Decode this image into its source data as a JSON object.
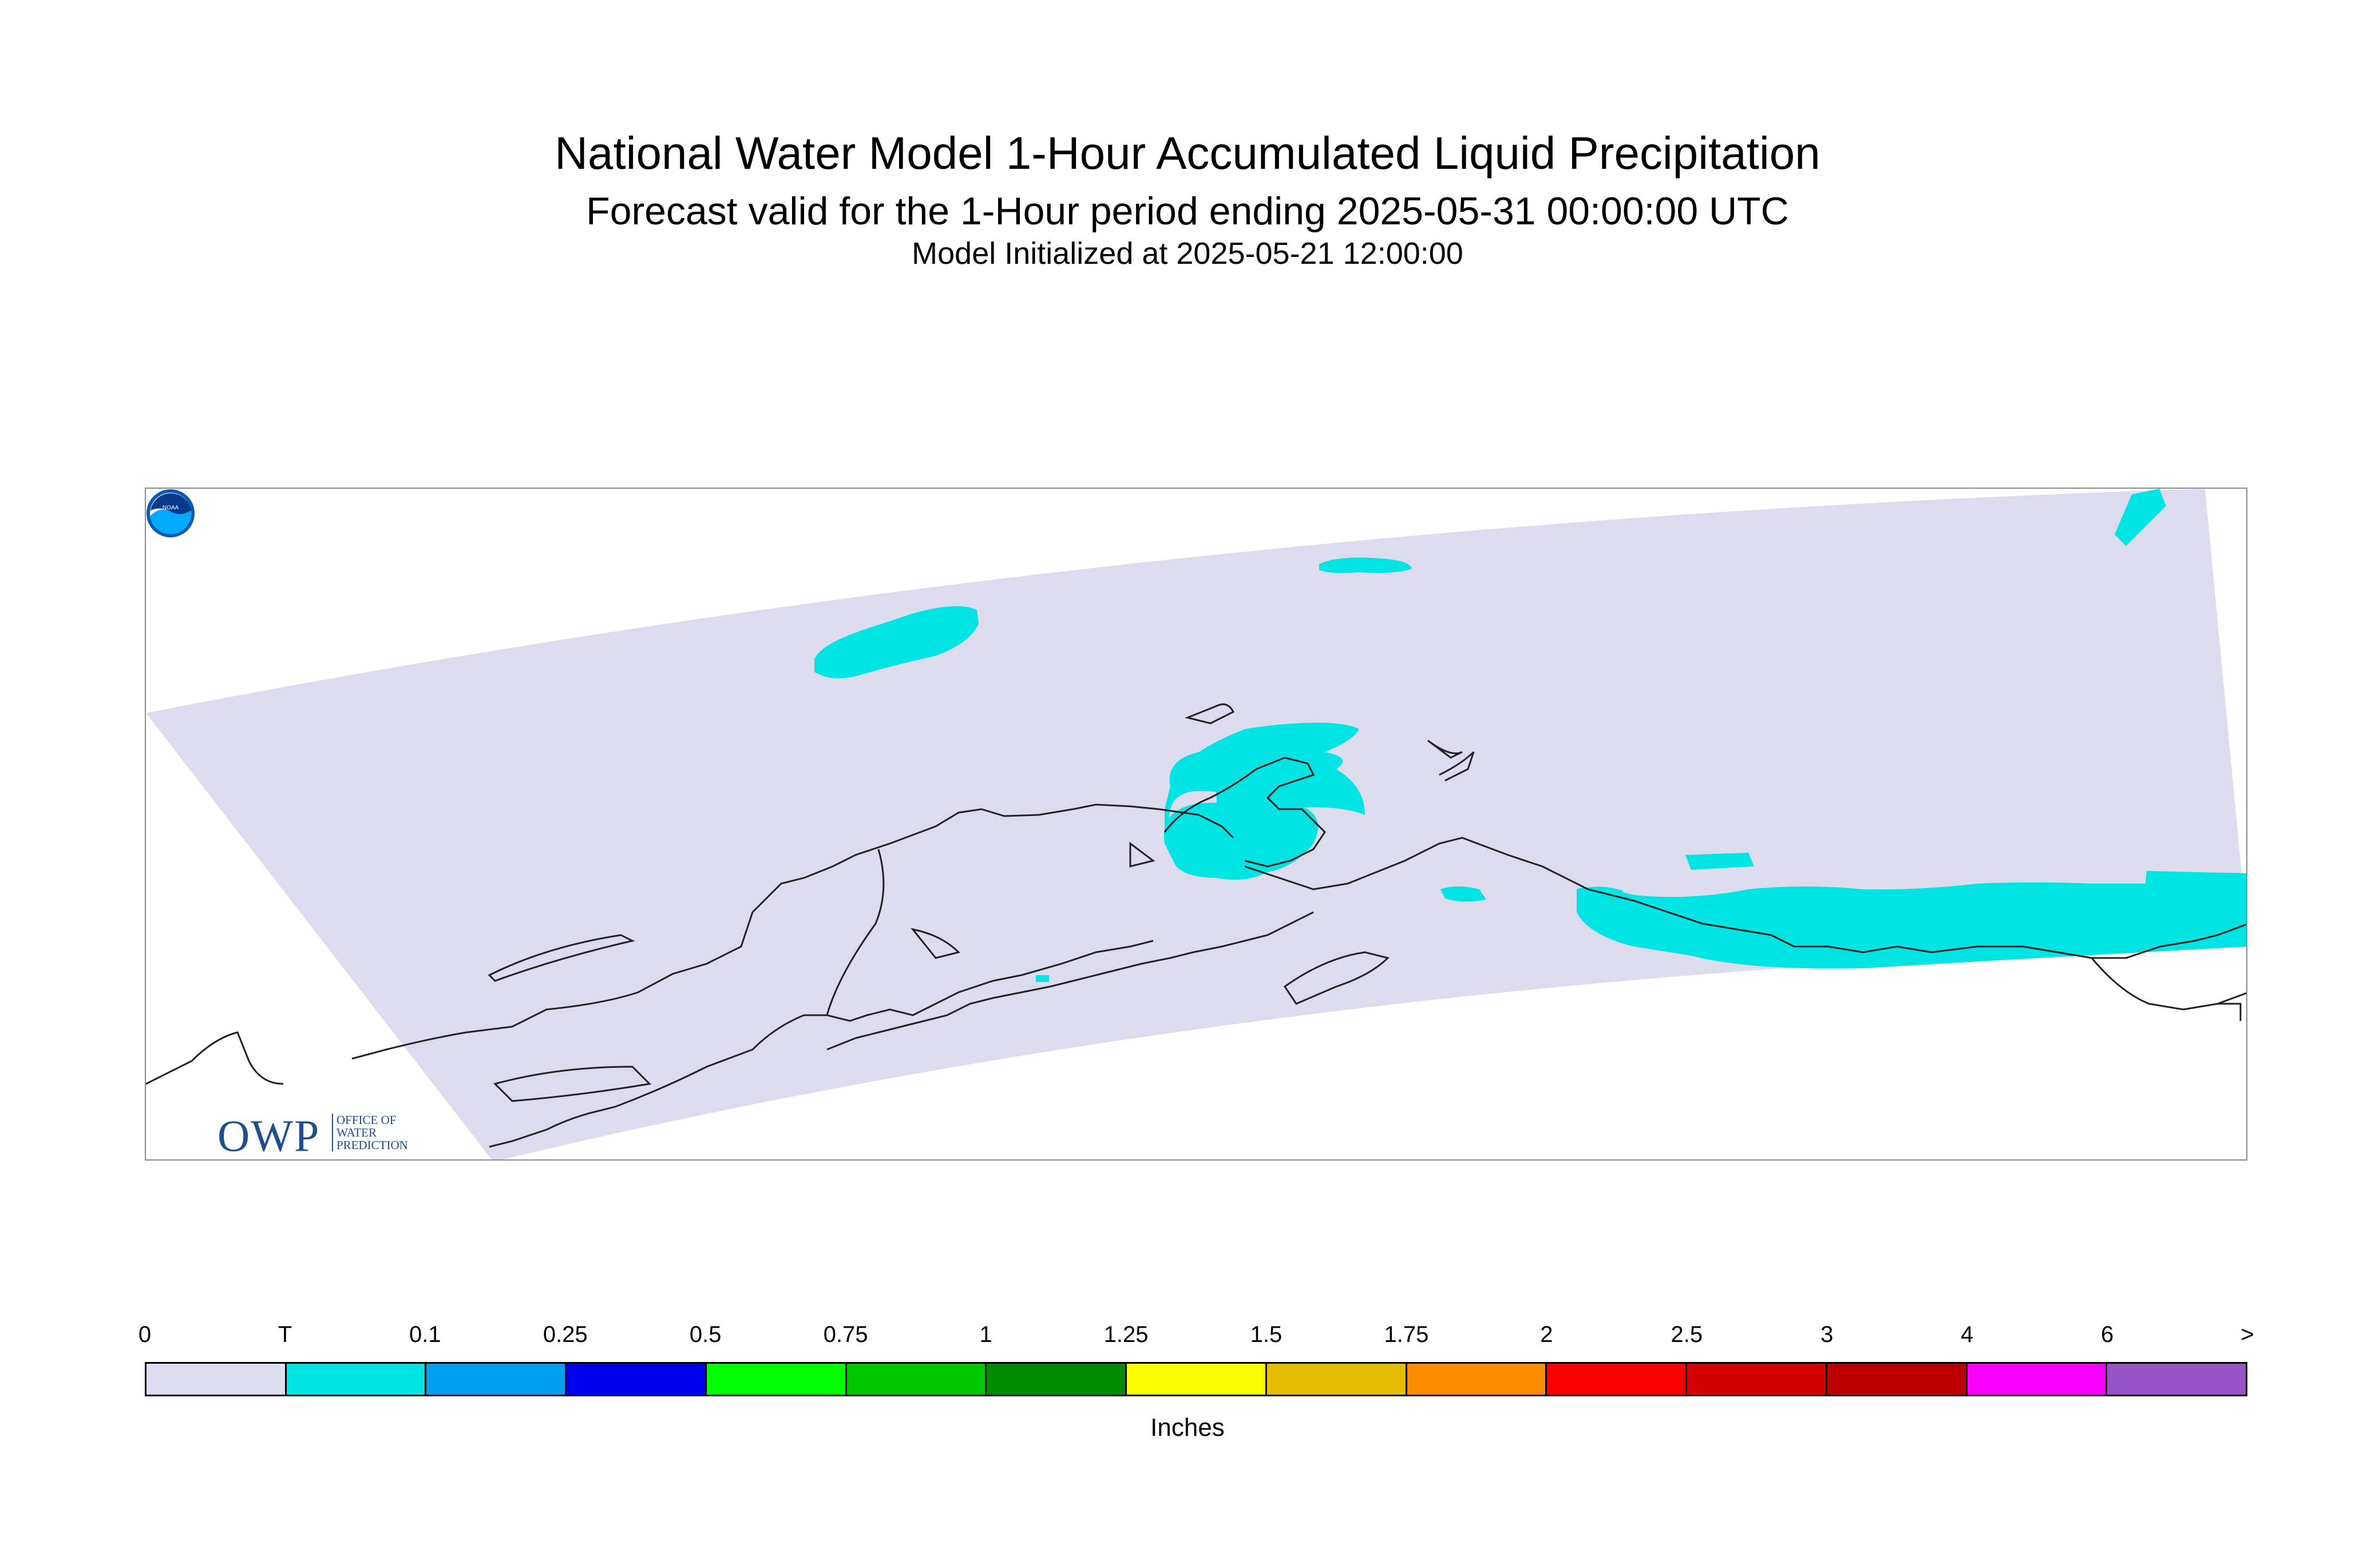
{
  "title": "National Water Model 1-Hour Accumulated Liquid Precipitation",
  "subtitle": "Forecast valid for the 1-Hour period ending 2025-05-31 00:00:00 UTC",
  "init_line": "Model Initialized at 2025-05-21 12:00:00",
  "map": {
    "region": "Alaska",
    "domain_color": "#dcdcee",
    "trace_color": "#00e4e4",
    "coastline_color": "#222222"
  },
  "logos": {
    "owp_letters": "OWP",
    "owp_sub": [
      "OFFICE OF",
      "WATER",
      "PREDICTION"
    ],
    "noaa": "NOAA"
  },
  "legend": {
    "units": "Inches",
    "tick_labels": [
      "0",
      "T",
      "0.1",
      "0.25",
      "0.5",
      "0.75",
      "1",
      "1.25",
      "1.5",
      "1.75",
      "2",
      "2.5",
      "3",
      "4",
      "6",
      ">"
    ],
    "colors": [
      "#dcdcee",
      "#00e4e4",
      "#00a0f0",
      "#0000f0",
      "#00fc00",
      "#00c800",
      "#008c00",
      "#fcfc00",
      "#e4bc00",
      "#fc8c00",
      "#fc0000",
      "#d40000",
      "#bc0000",
      "#f800f8",
      "#9854c6"
    ]
  }
}
